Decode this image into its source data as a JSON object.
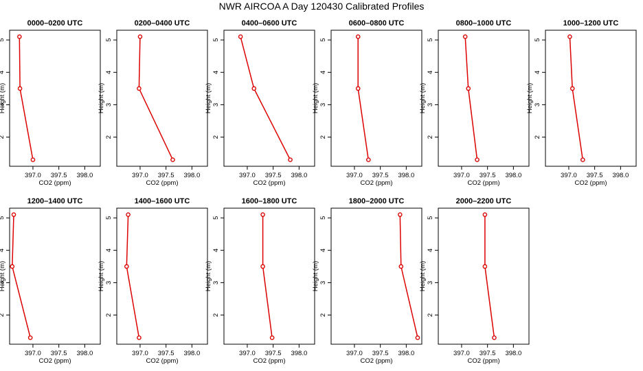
{
  "figure_title": "NWR AIRCOA A  Day 120430  Calibrated Profiles",
  "colors": {
    "line": "#dd0000",
    "axis": "#000000",
    "background": "#ffffff"
  },
  "chart_data": [
    {
      "type": "line",
      "title": "0000–0200 UTC",
      "xlabel": "CO2 (ppm)",
      "ylabel": "Height (m)",
      "xlim": [
        396.55,
        398.3
      ],
      "xticks": [
        397.0,
        397.5,
        398.0
      ],
      "xtick_labels": [
        "397.0",
        "397.5",
        "398.0"
      ],
      "ylim": [
        1.1,
        5.3
      ],
      "yticks": [
        2,
        3,
        4,
        5
      ],
      "ytick_labels": [
        "2",
        "3",
        "4",
        "5"
      ],
      "series": [
        {
          "name": "CO2",
          "x": [
            397.0,
            396.75,
            396.74
          ],
          "y": [
            1.3,
            3.5,
            5.1
          ]
        }
      ]
    },
    {
      "type": "line",
      "title": "0200–0400 UTC",
      "xlabel": "CO2 (ppm)",
      "ylabel": "Height (m)",
      "xlim": [
        396.55,
        398.3
      ],
      "xticks": [
        397.0,
        397.5,
        398.0
      ],
      "xtick_labels": [
        "397.0",
        "397.5",
        "398.0"
      ],
      "ylim": [
        1.1,
        5.3
      ],
      "yticks": [
        2,
        3,
        4,
        5
      ],
      "ytick_labels": [
        "2",
        "3",
        "4",
        "5"
      ],
      "series": [
        {
          "name": "CO2",
          "x": [
            397.63,
            396.98,
            397.0
          ],
          "y": [
            1.3,
            3.5,
            5.1
          ]
        }
      ]
    },
    {
      "type": "line",
      "title": "0400–0600 UTC",
      "xlabel": "CO2 (ppm)",
      "ylabel": "Height (m)",
      "xlim": [
        396.55,
        398.3
      ],
      "xticks": [
        397.0,
        397.5,
        398.0
      ],
      "xtick_labels": [
        "397.0",
        "397.5",
        "398.0"
      ],
      "ylim": [
        1.1,
        5.3
      ],
      "yticks": [
        2,
        3,
        4,
        5
      ],
      "ytick_labels": [
        "2",
        "3",
        "4",
        "5"
      ],
      "series": [
        {
          "name": "CO2",
          "x": [
            397.83,
            397.13,
            396.87
          ],
          "y": [
            1.3,
            3.5,
            5.1
          ]
        }
      ]
    },
    {
      "type": "line",
      "title": "0600–0800 UTC",
      "xlabel": "CO2 (ppm)",
      "ylabel": "Height (m)",
      "xlim": [
        396.55,
        398.3
      ],
      "xticks": [
        397.0,
        397.5,
        398.0
      ],
      "xtick_labels": [
        "397.0",
        "397.5",
        "398.0"
      ],
      "ylim": [
        1.1,
        5.3
      ],
      "yticks": [
        2,
        3,
        4,
        5
      ],
      "ytick_labels": [
        "2",
        "3",
        "4",
        "5"
      ],
      "series": [
        {
          "name": "CO2",
          "x": [
            397.27,
            397.07,
            397.07
          ],
          "y": [
            1.3,
            3.5,
            5.1
          ]
        }
      ]
    },
    {
      "type": "line",
      "title": "0800–1000 UTC",
      "xlabel": "CO2 (ppm)",
      "ylabel": "Height (m)",
      "xlim": [
        396.55,
        398.3
      ],
      "xticks": [
        397.0,
        397.5,
        398.0
      ],
      "xtick_labels": [
        "397.0",
        "397.5",
        "398.0"
      ],
      "ylim": [
        1.1,
        5.3
      ],
      "yticks": [
        2,
        3,
        4,
        5
      ],
      "ytick_labels": [
        "2",
        "3",
        "4",
        "5"
      ],
      "series": [
        {
          "name": "CO2",
          "x": [
            397.3,
            397.13,
            397.07
          ],
          "y": [
            1.3,
            3.5,
            5.1
          ]
        }
      ]
    },
    {
      "type": "line",
      "title": "1000–1200 UTC",
      "xlabel": "CO2 (ppm)",
      "ylabel": "Height (m)",
      "xlim": [
        396.55,
        398.3
      ],
      "xticks": [
        397.0,
        397.5,
        398.0
      ],
      "xtick_labels": [
        "397.0",
        "397.5",
        "398.0"
      ],
      "ylim": [
        1.1,
        5.3
      ],
      "yticks": [
        2,
        3,
        4,
        5
      ],
      "ytick_labels": [
        "2",
        "3",
        "4",
        "5"
      ],
      "series": [
        {
          "name": "CO2",
          "x": [
            397.27,
            397.07,
            397.02
          ],
          "y": [
            1.3,
            3.5,
            5.1
          ]
        }
      ]
    },
    {
      "type": "line",
      "title": "1200–1400 UTC",
      "xlabel": "CO2 (ppm)",
      "ylabel": "Height (m)",
      "xlim": [
        396.55,
        398.3
      ],
      "xticks": [
        397.0,
        397.5,
        398.0
      ],
      "xtick_labels": [
        "397.0",
        "397.5",
        "398.0"
      ],
      "ylim": [
        1.1,
        5.3
      ],
      "yticks": [
        2,
        3,
        4,
        5
      ],
      "ytick_labels": [
        "2",
        "3",
        "4",
        "5"
      ],
      "series": [
        {
          "name": "CO2",
          "x": [
            396.95,
            396.6,
            396.63
          ],
          "y": [
            1.3,
            3.5,
            5.1
          ]
        }
      ]
    },
    {
      "type": "line",
      "title": "1400–1600 UTC",
      "xlabel": "CO2 (ppm)",
      "ylabel": "Height (m)",
      "xlim": [
        396.55,
        398.3
      ],
      "xticks": [
        397.0,
        397.5,
        398.0
      ],
      "xtick_labels": [
        "397.0",
        "397.5",
        "398.0"
      ],
      "ylim": [
        1.1,
        5.3
      ],
      "yticks": [
        2,
        3,
        4,
        5
      ],
      "ytick_labels": [
        "2",
        "3",
        "4",
        "5"
      ],
      "series": [
        {
          "name": "CO2",
          "x": [
            396.98,
            396.74,
            396.77
          ],
          "y": [
            1.3,
            3.5,
            5.1
          ]
        }
      ]
    },
    {
      "type": "line",
      "title": "1600–1800 UTC",
      "xlabel": "CO2 (ppm)",
      "ylabel": "Height (m)",
      "xlim": [
        396.55,
        398.3
      ],
      "xticks": [
        397.0,
        397.5,
        398.0
      ],
      "xtick_labels": [
        "397.0",
        "397.5",
        "398.0"
      ],
      "ylim": [
        1.1,
        5.3
      ],
      "yticks": [
        2,
        3,
        4,
        5
      ],
      "ytick_labels": [
        "2",
        "3",
        "4",
        "5"
      ],
      "series": [
        {
          "name": "CO2",
          "x": [
            397.48,
            397.3,
            397.3
          ],
          "y": [
            1.3,
            3.5,
            5.1
          ]
        }
      ]
    },
    {
      "type": "line",
      "title": "1800–2000 UTC",
      "xlabel": "CO2 (ppm)",
      "ylabel": "Height (m)",
      "xlim": [
        396.55,
        398.3
      ],
      "xticks": [
        397.0,
        397.5,
        398.0
      ],
      "xtick_labels": [
        "397.0",
        "397.5",
        "398.0"
      ],
      "ylim": [
        1.1,
        5.3
      ],
      "yticks": [
        2,
        3,
        4,
        5
      ],
      "ytick_labels": [
        "2",
        "3",
        "4",
        "5"
      ],
      "series": [
        {
          "name": "CO2",
          "x": [
            398.22,
            397.9,
            397.88
          ],
          "y": [
            1.3,
            3.5,
            5.1
          ]
        }
      ]
    },
    {
      "type": "line",
      "title": "2000–2200 UTC",
      "xlabel": "CO2 (ppm)",
      "ylabel": "Height (m)",
      "xlim": [
        396.55,
        398.3
      ],
      "xticks": [
        397.0,
        397.5,
        398.0
      ],
      "xtick_labels": [
        "397.0",
        "397.5",
        "398.0"
      ],
      "ylim": [
        1.1,
        5.3
      ],
      "yticks": [
        2,
        3,
        4,
        5
      ],
      "ytick_labels": [
        "2",
        "3",
        "4",
        "5"
      ],
      "series": [
        {
          "name": "CO2",
          "x": [
            397.63,
            397.45,
            397.45
          ],
          "y": [
            1.3,
            3.5,
            5.1
          ]
        }
      ]
    }
  ]
}
